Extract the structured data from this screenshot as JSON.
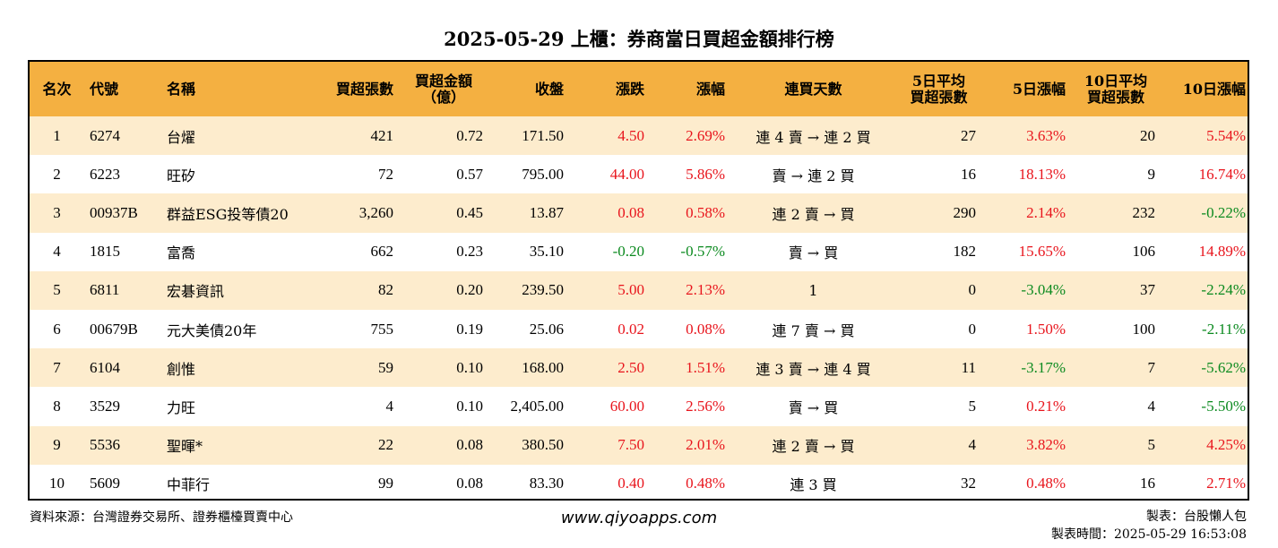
{
  "title": "2025-05-29 上櫃：券商當日買超金額排行榜",
  "columns": [
    "名次",
    "代號",
    "名稱",
    "買超張數",
    "買超金額\n（億）",
    "收盤",
    "漲跌",
    "漲幅",
    "連買天數",
    "5日平均\n買超張數",
    "5日漲幅",
    "10日平均\n買超張數",
    "10日漲幅"
  ],
  "rows": [
    {
      "rank": "1",
      "code": "6274",
      "name": "台燿",
      "shares": "421",
      "amount": "0.72",
      "close": "171.50",
      "change": "4.50",
      "change_color": "red",
      "pct": "2.69%",
      "pct_color": "red",
      "streak": "連 4 賣 → 連 2 買",
      "avg5": "27",
      "pct5": "3.63%",
      "pct5_color": "red",
      "avg10": "20",
      "pct10": "5.54%",
      "pct10_color": "red"
    },
    {
      "rank": "2",
      "code": "6223",
      "name": "旺矽",
      "shares": "72",
      "amount": "0.57",
      "close": "795.00",
      "change": "44.00",
      "change_color": "red",
      "pct": "5.86%",
      "pct_color": "red",
      "streak": "賣 → 連 2 買",
      "avg5": "16",
      "pct5": "18.13%",
      "pct5_color": "red",
      "avg10": "9",
      "pct10": "16.74%",
      "pct10_color": "red"
    },
    {
      "rank": "3",
      "code": "00937B",
      "name": "群益ESG投等債20",
      "shares": "3,260",
      "amount": "0.45",
      "close": "13.87",
      "change": "0.08",
      "change_color": "red",
      "pct": "0.58%",
      "pct_color": "red",
      "streak": "連 2 賣 → 買",
      "avg5": "290",
      "pct5": "2.14%",
      "pct5_color": "red",
      "avg10": "232",
      "pct10": "-0.22%",
      "pct10_color": "green"
    },
    {
      "rank": "4",
      "code": "1815",
      "name": "富喬",
      "shares": "662",
      "amount": "0.23",
      "close": "35.10",
      "change": "-0.20",
      "change_color": "green",
      "pct": "-0.57%",
      "pct_color": "green",
      "streak": "賣 → 買",
      "avg5": "182",
      "pct5": "15.65%",
      "pct5_color": "red",
      "avg10": "106",
      "pct10": "14.89%",
      "pct10_color": "red"
    },
    {
      "rank": "5",
      "code": "6811",
      "name": "宏碁資訊",
      "shares": "82",
      "amount": "0.20",
      "close": "239.50",
      "change": "5.00",
      "change_color": "red",
      "pct": "2.13%",
      "pct_color": "red",
      "streak": "1",
      "avg5": "0",
      "pct5": "-3.04%",
      "pct5_color": "green",
      "avg10": "37",
      "pct10": "-2.24%",
      "pct10_color": "green"
    },
    {
      "rank": "6",
      "code": "00679B",
      "name": "元大美債20年",
      "shares": "755",
      "amount": "0.19",
      "close": "25.06",
      "change": "0.02",
      "change_color": "red",
      "pct": "0.08%",
      "pct_color": "red",
      "streak": "連 7 賣 → 買",
      "avg5": "0",
      "pct5": "1.50%",
      "pct5_color": "red",
      "avg10": "100",
      "pct10": "-2.11%",
      "pct10_color": "green"
    },
    {
      "rank": "7",
      "code": "6104",
      "name": "創惟",
      "shares": "59",
      "amount": "0.10",
      "close": "168.00",
      "change": "2.50",
      "change_color": "red",
      "pct": "1.51%",
      "pct_color": "red",
      "streak": "連 3 賣 → 連 4 買",
      "avg5": "11",
      "pct5": "-3.17%",
      "pct5_color": "green",
      "avg10": "7",
      "pct10": "-5.62%",
      "pct10_color": "green"
    },
    {
      "rank": "8",
      "code": "3529",
      "name": "力旺",
      "shares": "4",
      "amount": "0.10",
      "close": "2,405.00",
      "change": "60.00",
      "change_color": "red",
      "pct": "2.56%",
      "pct_color": "red",
      "streak": "賣 → 買",
      "avg5": "5",
      "pct5": "0.21%",
      "pct5_color": "red",
      "avg10": "4",
      "pct10": "-5.50%",
      "pct10_color": "green"
    },
    {
      "rank": "9",
      "code": "5536",
      "name": "聖暉*",
      "shares": "22",
      "amount": "0.08",
      "close": "380.50",
      "change": "7.50",
      "change_color": "red",
      "pct": "2.01%",
      "pct_color": "red",
      "streak": "連 2 賣 → 買",
      "avg5": "4",
      "pct5": "3.82%",
      "pct5_color": "red",
      "avg10": "5",
      "pct10": "4.25%",
      "pct10_color": "red"
    },
    {
      "rank": "10",
      "code": "5609",
      "name": "中菲行",
      "shares": "99",
      "amount": "0.08",
      "close": "83.30",
      "change": "0.40",
      "change_color": "red",
      "pct": "0.48%",
      "pct_color": "red",
      "streak": "連 3 買",
      "avg5": "32",
      "pct5": "0.48%",
      "pct5_color": "red",
      "avg10": "16",
      "pct10": "2.71%",
      "pct10_color": "red"
    }
  ],
  "footer": {
    "source": "資料來源：台灣證券交易所、證券櫃檯買賣中心",
    "website": "www.qiyoapps.com",
    "maker": "製表：台股懶人包",
    "made_time": "製表時間：2025-05-29 16:53:08"
  },
  "colors": {
    "header_bg": "#f4b041",
    "odd_row_bg": "#fdeccd",
    "up": "#e8141c",
    "down": "#0b8a1f"
  }
}
